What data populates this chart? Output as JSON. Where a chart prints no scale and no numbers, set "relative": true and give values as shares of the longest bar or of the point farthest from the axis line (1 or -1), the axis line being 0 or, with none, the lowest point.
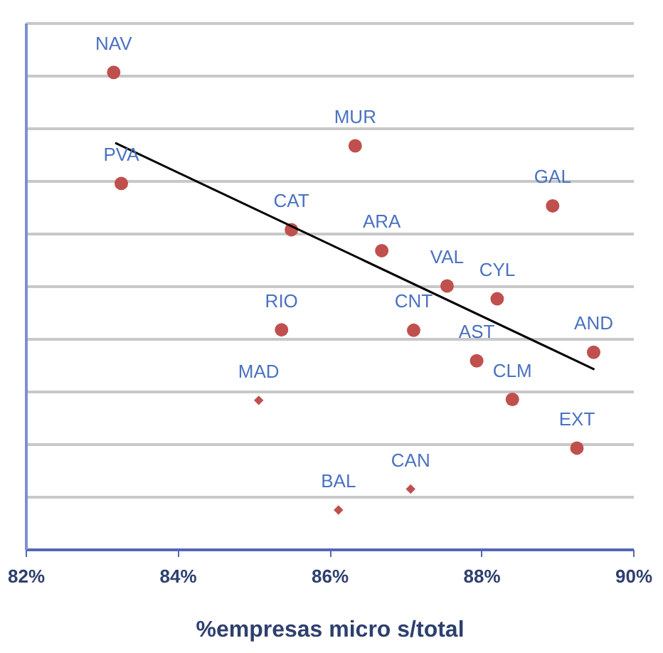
{
  "chart_data": {
    "type": "scatter",
    "xlabel": "%empresas micro s/total",
    "relative": true,
    "grid": "y",
    "xlim": [
      82,
      90
    ],
    "xticks": [
      {
        "value": 82,
        "label": "82%"
      },
      {
        "value": 84,
        "label": "84%"
      },
      {
        "value": 86,
        "label": "86%"
      },
      {
        "value": 88,
        "label": "88%"
      },
      {
        "value": 90,
        "label": "90%"
      }
    ],
    "series": [
      {
        "marker": "circle",
        "color": "#c0504d",
        "x": [
          83.16,
          83.26,
          85.5,
          85.37,
          86.34,
          86.69,
          87.55,
          87.11,
          88.21,
          87.94,
          88.41,
          89.48,
          88.94,
          89.26
        ],
        "values": [
          1.0,
          0.767,
          0.67,
          0.46,
          0.846,
          0.626,
          0.552,
          0.459,
          0.525,
          0.395,
          0.314,
          0.413,
          0.72,
          0.212
        ]
      },
      {
        "marker": "diamond",
        "color": "#c0504d",
        "x": [
          85.07,
          86.12,
          87.07
        ],
        "values": [
          0.312,
          0.082,
          0.126
        ]
      },
      {
        "type": "line",
        "color": "#000000",
        "x": [
          83.18,
          89.49
        ],
        "values": [
          0.852,
          0.377
        ]
      }
    ],
    "annotations": [
      {
        "text": "NAV",
        "x": 83.16,
        "y": 1.0
      },
      {
        "text": "PVA",
        "x": 83.26,
        "y": 0.767
      },
      {
        "text": "CAT",
        "x": 85.5,
        "y": 0.67
      },
      {
        "text": "RIO",
        "x": 85.37,
        "y": 0.46
      },
      {
        "text": "MUR",
        "x": 86.34,
        "y": 0.846
      },
      {
        "text": "ARA",
        "x": 86.69,
        "y": 0.626
      },
      {
        "text": "VAL",
        "x": 87.55,
        "y": 0.552
      },
      {
        "text": "CNT",
        "x": 87.11,
        "y": 0.459
      },
      {
        "text": "CYL",
        "x": 88.21,
        "y": 0.525
      },
      {
        "text": "AST",
        "x": 87.94,
        "y": 0.395
      },
      {
        "text": "CLM",
        "x": 88.41,
        "y": 0.314
      },
      {
        "text": "AND",
        "x": 89.48,
        "y": 0.413
      },
      {
        "text": "GAL",
        "x": 88.94,
        "y": 0.72
      },
      {
        "text": "EXT",
        "x": 89.26,
        "y": 0.212
      },
      {
        "text": "MAD",
        "x": 85.07,
        "y": 0.312
      },
      {
        "text": "BAL",
        "x": 86.12,
        "y": 0.082
      },
      {
        "text": "CAN",
        "x": 87.07,
        "y": 0.126
      }
    ]
  }
}
